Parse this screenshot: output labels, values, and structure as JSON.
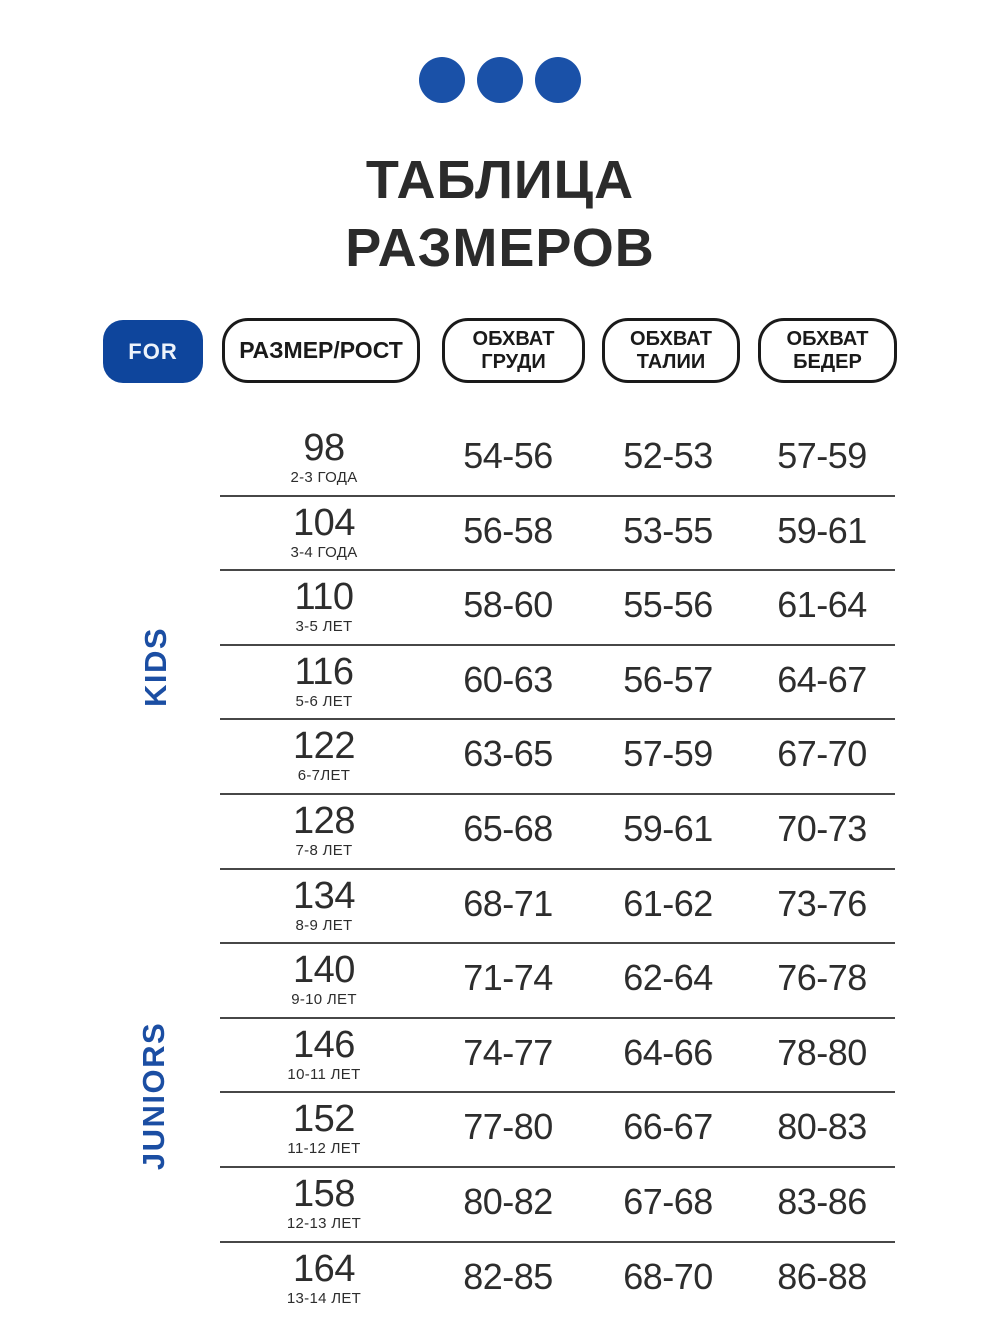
{
  "colors": {
    "accent_blue": "#0e459c",
    "dots_blue": "#1a51a8",
    "group_label_blue": "#1b4ea3",
    "text_dark": "#2d2d2d",
    "row_divider": "#474747"
  },
  "title": {
    "line1": "ТАБЛИЦА",
    "line2": "РАЗМЕРОВ"
  },
  "header": {
    "for_badge": "FOR",
    "col_size": "РАЗМЕР/РОСТ",
    "col_chest": "ОБХВАТ ГРУДИ",
    "col_waist": "ОБХВАТ ТАЛИИ",
    "col_hips": "ОБХВАТ БЕДЕР"
  },
  "side_groups": {
    "kids": "KIDS",
    "juniors": "JUNIORS"
  },
  "chart_data": {
    "type": "table",
    "title": "ТАБЛИЦА РАЗМЕРОВ",
    "columns": [
      "РАЗМЕР/РОСТ",
      "ОБХВАТ ГРУДИ",
      "ОБХВАТ ТАЛИИ",
      "ОБХВАТ БЕДЕР"
    ],
    "side_labels": [
      "KIDS",
      "JUNIORS"
    ],
    "rows": [
      {
        "size": "98",
        "age": "2-3 ГОДА",
        "chest": "54-56",
        "waist": "52-53",
        "hips": "57-59"
      },
      {
        "size": "104",
        "age": "3-4 ГОДА",
        "chest": "56-58",
        "waist": "53-55",
        "hips": "59-61"
      },
      {
        "size": "110",
        "age": "3-5 ЛЕТ",
        "chest": "58-60",
        "waist": "55-56",
        "hips": "61-64"
      },
      {
        "size": "116",
        "age": "5-6 ЛЕТ",
        "chest": "60-63",
        "waist": "56-57",
        "hips": "64-67"
      },
      {
        "size": "122",
        "age": "6-7ЛЕТ",
        "chest": "63-65",
        "waist": "57-59",
        "hips": "67-70"
      },
      {
        "size": "128",
        "age": "7-8 ЛЕТ",
        "chest": "65-68",
        "waist": "59-61",
        "hips": "70-73"
      },
      {
        "size": "134",
        "age": "8-9 ЛЕТ",
        "chest": "68-71",
        "waist": "61-62",
        "hips": "73-76"
      },
      {
        "size": "140",
        "age": "9-10 ЛЕТ",
        "chest": "71-74",
        "waist": "62-64",
        "hips": "76-78"
      },
      {
        "size": "146",
        "age": "10-11 ЛЕТ",
        "chest": "74-77",
        "waist": "64-66",
        "hips": "78-80"
      },
      {
        "size": "152",
        "age": "11-12 ЛЕТ",
        "chest": "77-80",
        "waist": "66-67",
        "hips": "80-83"
      },
      {
        "size": "158",
        "age": "12-13 ЛЕТ",
        "chest": "80-82",
        "waist": "67-68",
        "hips": "83-86"
      },
      {
        "size": "164",
        "age": "13-14 ЛЕТ",
        "chest": "82-85",
        "waist": "68-70",
        "hips": "86-88"
      }
    ]
  }
}
